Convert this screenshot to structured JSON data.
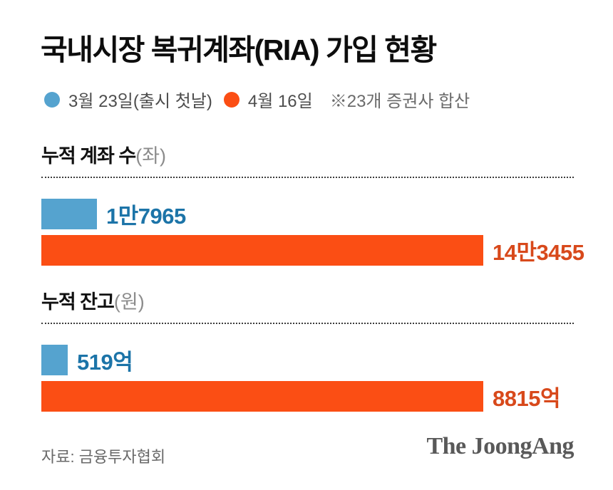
{
  "title": "국내시장 복귀계좌(RIA) 가입 현황",
  "legend": {
    "items": [
      {
        "label": "3월 23일(출시 첫날)",
        "color": "#55a3cf"
      },
      {
        "label": "4월 16일",
        "color": "#fb4e14"
      }
    ],
    "note": "※23개 증권사 합산"
  },
  "colors": {
    "bar_blue": "#55a3cf",
    "bar_orange": "#fb4e14",
    "label_blue": "#1c74a8",
    "label_orange": "#d8491b",
    "title_text": "#0d0d0d",
    "legend_text": "#4d4d4d",
    "unit_text": "#8c8c8c",
    "source_text": "#696969",
    "logo_text": "#595959"
  },
  "footer": {
    "source": "자료: 금융투자협회",
    "logo": "The JoongAng"
  },
  "chart_data": {
    "type": "bar",
    "orientation": "horizontal",
    "title": "국내시장 복귀계좌(RIA) 가입 현황",
    "note": "※23개 증권사 합산",
    "series_names": [
      "3월 23일(출시 첫날)",
      "4월 16일"
    ],
    "legend_position": "top",
    "grid": false,
    "sections": [
      {
        "title": "누적 계좌 수",
        "unit": "(좌)",
        "value_unit": "좌",
        "rows": [
          {
            "series": "3월 23일(출시 첫날)",
            "value": 17965,
            "label": "1만7965",
            "color": "#55a3cf",
            "label_color": "#1c74a8"
          },
          {
            "series": "4월 16일",
            "value": 143455,
            "label": "14만3455",
            "color": "#fb4e14",
            "label_color": "#d8491b"
          }
        ]
      },
      {
        "title": "누적 잔고",
        "unit": "(원)",
        "value_unit": "억 원",
        "rows": [
          {
            "series": "3월 23일(출시 첫날)",
            "value": 519,
            "label": "519억",
            "color": "#55a3cf",
            "label_color": "#1c74a8"
          },
          {
            "series": "4월 16일",
            "value": 8815,
            "label": "8815억",
            "color": "#fb4e14",
            "label_color": "#d8491b"
          }
        ]
      }
    ]
  }
}
